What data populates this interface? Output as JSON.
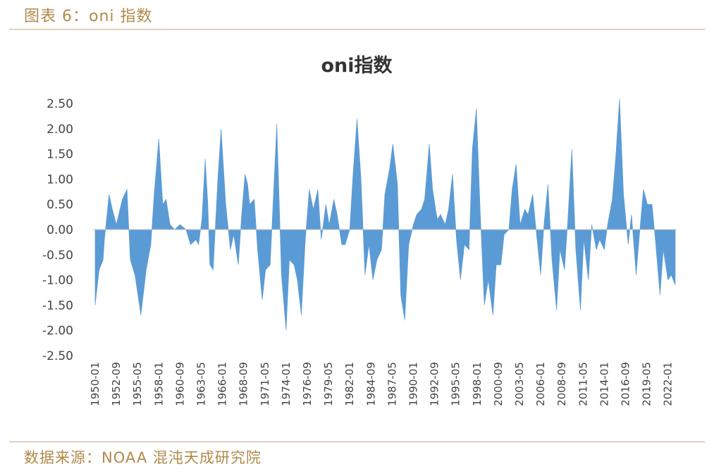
{
  "figure": {
    "header": "图表 6：oni 指数",
    "source": "数据来源：NOAA 混沌天成研究院"
  },
  "chart_data": {
    "type": "area",
    "title": "oni指数",
    "xlabel": "",
    "ylabel": "",
    "ylim": [
      -2.5,
      2.5
    ],
    "y_ticks": [
      "2.50",
      "2.00",
      "1.50",
      "1.00",
      "0.50",
      "0.00",
      "-0.50",
      "-1.00",
      "-1.50",
      "-2.00",
      "-2.50"
    ],
    "x_ticks": [
      "1950-01",
      "1952-09",
      "1955-05",
      "1958-01",
      "1960-09",
      "1963-05",
      "1966-01",
      "1968-09",
      "1971-05",
      "1974-01",
      "1976-09",
      "1979-05",
      "1982-01",
      "1984-09",
      "1987-05",
      "1990-01",
      "1992-09",
      "1995-05",
      "1998-01",
      "2000-09",
      "2003-05",
      "2006-01",
      "2008-09",
      "2011-05",
      "2014-01",
      "2016-09",
      "2019-05",
      "2022-01"
    ],
    "x_range": [
      "1950-01",
      "2022-12"
    ],
    "grid": false,
    "legend": "none",
    "color": "#5b9bd5",
    "series": [
      {
        "name": "",
        "x": [
          "1950-01",
          "1950-07",
          "1951-01",
          "1951-03",
          "1951-10",
          "1952-03",
          "1952-09",
          "1953-06",
          "1954-01",
          "1954-06",
          "1955-01",
          "1955-10",
          "1956-06",
          "1957-01",
          "1957-06",
          "1958-01",
          "1958-07",
          "1958-12",
          "1959-06",
          "1960-01",
          "1960-09",
          "1961-06",
          "1962-01",
          "1962-09",
          "1963-01",
          "1963-06",
          "1963-11",
          "1964-03",
          "1964-06",
          "1964-11",
          "1965-06",
          "1965-11",
          "1966-06",
          "1967-01",
          "1967-06",
          "1968-01",
          "1968-06",
          "1968-11",
          "1969-03",
          "1969-06",
          "1970-01",
          "1970-06",
          "1971-01",
          "1971-06",
          "1972-01",
          "1972-06",
          "1972-11",
          "1973-06",
          "1974-01",
          "1974-06",
          "1975-01",
          "1975-06",
          "1975-12",
          "1976-06",
          "1976-12",
          "1977-06",
          "1978-01",
          "1978-06",
          "1979-01",
          "1979-06",
          "1980-01",
          "1980-06",
          "1981-01",
          "1981-06",
          "1982-01",
          "1982-06",
          "1982-12",
          "1983-06",
          "1983-12",
          "1984-06",
          "1984-12",
          "1985-06",
          "1986-01",
          "1986-06",
          "1987-01",
          "1987-06",
          "1988-01",
          "1988-06",
          "1988-12",
          "1989-06",
          "1990-01",
          "1990-06",
          "1991-01",
          "1991-06",
          "1992-01",
          "1992-06",
          "1993-01",
          "1993-06",
          "1994-01",
          "1994-06",
          "1994-12",
          "1995-06",
          "1995-12",
          "1996-06",
          "1997-01",
          "1997-06",
          "1997-12",
          "1998-06",
          "1998-12",
          "1999-06",
          "2000-01",
          "2000-06",
          "2001-01",
          "2001-06",
          "2002-01",
          "2002-06",
          "2002-12",
          "2003-06",
          "2004-01",
          "2004-06",
          "2005-01",
          "2005-06",
          "2006-01",
          "2006-06",
          "2006-12",
          "2007-06",
          "2008-01",
          "2008-06",
          "2009-01",
          "2009-06",
          "2009-12",
          "2010-06",
          "2011-01",
          "2011-06",
          "2012-01",
          "2012-06",
          "2013-01",
          "2013-06",
          "2014-01",
          "2014-06",
          "2015-01",
          "2015-06",
          "2015-12",
          "2016-06",
          "2017-01",
          "2017-06",
          "2018-01",
          "2018-06",
          "2018-12",
          "2019-06",
          "2020-01",
          "2020-06",
          "2021-01",
          "2021-06",
          "2022-01",
          "2022-06",
          "2022-12"
        ],
        "values": [
          -1.5,
          -0.8,
          -0.6,
          -0.2,
          0.7,
          0.4,
          0.1,
          0.6,
          0.8,
          -0.6,
          -0.9,
          -1.7,
          -0.8,
          -0.3,
          0.7,
          1.8,
          0.5,
          0.6,
          0.1,
          0.0,
          0.1,
          0.0,
          -0.3,
          -0.2,
          -0.3,
          0.2,
          1.4,
          0.5,
          -0.7,
          -0.8,
          1.0,
          2.0,
          0.5,
          -0.4,
          -0.1,
          -0.7,
          0.3,
          1.1,
          0.9,
          0.5,
          0.6,
          -0.4,
          -1.4,
          -0.8,
          -0.7,
          0.7,
          2.1,
          -0.9,
          -2.0,
          -0.6,
          -0.7,
          -1.0,
          -1.7,
          -0.2,
          0.8,
          0.4,
          0.8,
          -0.2,
          0.5,
          0.1,
          0.6,
          0.3,
          -0.3,
          -0.3,
          0.0,
          1.1,
          2.2,
          1.0,
          -0.9,
          -0.3,
          -1.0,
          -0.6,
          -0.4,
          0.7,
          1.2,
          1.7,
          0.9,
          -1.3,
          -1.8,
          -0.3,
          0.1,
          0.3,
          0.4,
          0.6,
          1.7,
          0.8,
          0.2,
          0.3,
          0.1,
          0.4,
          1.1,
          -0.2,
          -1.0,
          -0.3,
          -0.4,
          1.6,
          2.4,
          0.3,
          -1.5,
          -1.0,
          -1.7,
          -0.7,
          -0.7,
          -0.1,
          0.0,
          0.8,
          1.3,
          0.1,
          0.4,
          0.3,
          0.7,
          0.0,
          -0.9,
          0.1,
          0.9,
          -0.6,
          -1.6,
          -0.4,
          -0.8,
          0.2,
          1.6,
          -0.4,
          -1.6,
          -0.2,
          -1.0,
          0.1,
          -0.4,
          -0.2,
          -0.4,
          0.1,
          0.6,
          1.4,
          2.6,
          0.7,
          -0.3,
          0.3,
          -0.9,
          -0.1,
          0.8,
          0.5,
          0.5,
          -0.2,
          -1.3,
          -0.4,
          -1.0,
          -0.9,
          -1.1
        ]
      }
    ]
  }
}
